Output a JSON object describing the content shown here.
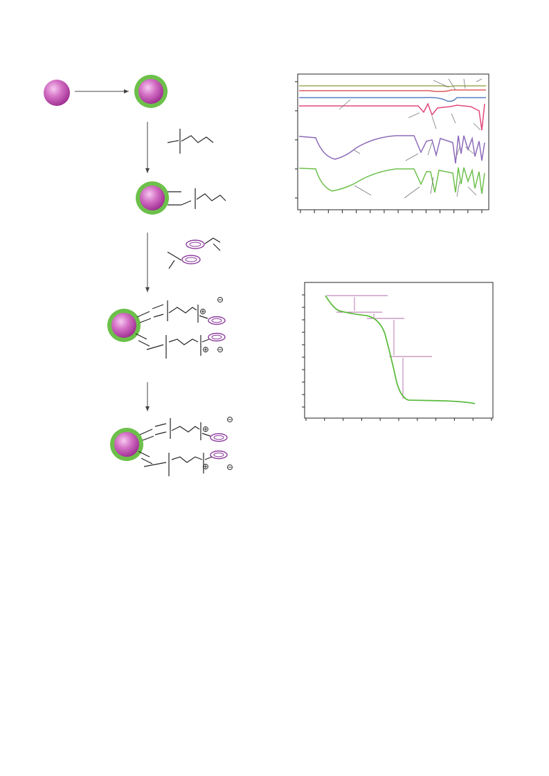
{
  "colors": {
    "core_gradient_light": "#f6c9f0",
    "core_gradient_mid": "#d36fc4",
    "core_gradient_dark": "#9c2a8f",
    "shell": "#6cc04a",
    "cyclopentadienyl_ring": "#8b3a9c",
    "bond_line": "#222222",
    "arrow_line": "#444444",
    "charge_symbol": "#222222",
    "ftir_curves": [
      "#9aab52",
      "#e05a5a",
      "#5a7fbf",
      "#e0457a",
      "#8c6ab8",
      "#6cc04a"
    ],
    "tga_curve": "#5cbc3f",
    "tga_guide": "#b06aa6",
    "axis_frame": "#222222"
  },
  "icons": {
    "plus_charge": "circled-plus-icon",
    "minus_charge": "circled-minus-icon",
    "core_shell": "core-shell-nanoparticle-icon",
    "core": "nanoparticle-core-icon",
    "ring": "cyclopentadienyl-ring-icon"
  },
  "chart_data": [
    {
      "type": "line",
      "panel": "ftir-spectra",
      "series_count": 6,
      "grid": false,
      "x_ticks": 14,
      "y_ticks": 5
    },
    {
      "type": "line",
      "panel": "tga-curve",
      "series_count": 1,
      "grid": false,
      "x_ticks": 11,
      "y_ticks": 10,
      "weight_loss_steps": 4
    }
  ]
}
